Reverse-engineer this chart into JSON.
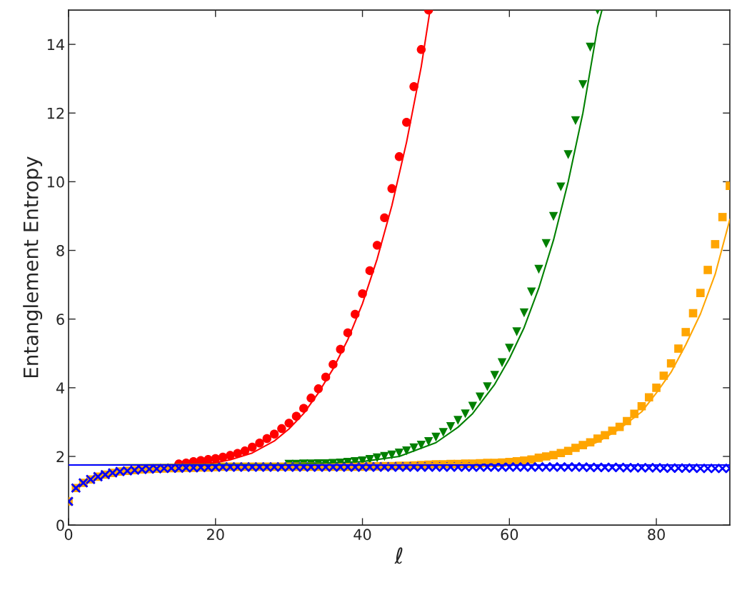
{
  "chart_data": {
    "type": "scatter",
    "xlabel": "ℓ",
    "ylabel": "Entanglement Entropy",
    "xlim": [
      0,
      90
    ],
    "ylim": [
      0,
      15
    ],
    "xticks": [
      0,
      20,
      40,
      60,
      80
    ],
    "yticks": [
      0,
      2,
      4,
      6,
      8,
      10,
      12,
      14
    ],
    "grid": false,
    "legend": false,
    "x": [
      0,
      1,
      2,
      3,
      4,
      5,
      6,
      7,
      8,
      9,
      10,
      11,
      12,
      13,
      14,
      15,
      16,
      17,
      18,
      19,
      20,
      21,
      22,
      23,
      24,
      25,
      26,
      27,
      28,
      29,
      30,
      31,
      32,
      33,
      34,
      35,
      36,
      37,
      38,
      39,
      40,
      41,
      42,
      43,
      44,
      45,
      46,
      47,
      48,
      49,
      50,
      51,
      52,
      53,
      54,
      55,
      56,
      57,
      58,
      59,
      60,
      61,
      62,
      63,
      64,
      65,
      66,
      67,
      68,
      69,
      70,
      71,
      72,
      73,
      74,
      75,
      76,
      77,
      78,
      79,
      80,
      81,
      82,
      83,
      84,
      85,
      86,
      87,
      88,
      89,
      90
    ],
    "series": [
      {
        "marker": "circle",
        "color": "#ff0000",
        "x": [
          15,
          16,
          17,
          18,
          19,
          20,
          21,
          22,
          23,
          24,
          25,
          26,
          27,
          28,
          29,
          30,
          31,
          32,
          33,
          34,
          35,
          36,
          37,
          38,
          39,
          40,
          41,
          42,
          43,
          44,
          45,
          46,
          47,
          48,
          49
        ],
        "values": [
          1.78,
          1.81,
          1.85,
          1.88,
          1.91,
          1.94,
          1.98,
          2.03,
          2.09,
          2.16,
          2.27,
          2.39,
          2.52,
          2.65,
          2.81,
          2.97,
          3.17,
          3.4,
          3.7,
          3.97,
          4.31,
          4.68,
          5.12,
          5.6,
          6.14,
          6.74,
          7.41,
          8.15,
          8.95,
          9.8,
          10.73,
          11.73,
          12.77,
          13.85,
          15.0
        ]
      },
      {
        "marker": "triangle",
        "color": "#008000",
        "x": [
          30,
          31,
          32,
          33,
          34,
          35,
          36,
          37,
          38,
          39,
          40,
          41,
          42,
          43,
          44,
          45,
          46,
          47,
          48,
          49,
          50,
          51,
          52,
          53,
          54,
          55,
          56,
          57,
          58,
          59,
          60,
          61,
          62,
          63,
          64,
          65,
          66,
          67,
          68,
          69,
          70,
          71,
          72
        ],
        "values": [
          1.77,
          1.77,
          1.78,
          1.78,
          1.79,
          1.79,
          1.8,
          1.81,
          1.83,
          1.85,
          1.87,
          1.91,
          1.96,
          2.0,
          2.04,
          2.1,
          2.16,
          2.25,
          2.33,
          2.43,
          2.56,
          2.7,
          2.87,
          3.05,
          3.24,
          3.46,
          3.73,
          4.03,
          4.36,
          4.73,
          5.15,
          5.63,
          6.18,
          6.79,
          7.45,
          8.2,
          8.99,
          9.85,
          10.79,
          11.78,
          12.83,
          13.92,
          15.0
        ]
      },
      {
        "marker": "square",
        "color": "#ffa500",
        "values": [
          0.69,
          1.08,
          1.23,
          1.33,
          1.41,
          1.47,
          1.52,
          1.56,
          1.58,
          1.6,
          1.62,
          1.63,
          1.64,
          1.65,
          1.66,
          1.66,
          1.67,
          1.67,
          1.68,
          1.68,
          1.69,
          1.7,
          1.7,
          1.7,
          1.7,
          1.7,
          1.7,
          1.7,
          1.7,
          1.7,
          1.7,
          1.7,
          1.7,
          1.7,
          1.7,
          1.7,
          1.7,
          1.7,
          1.7,
          1.7,
          1.7,
          1.71,
          1.71,
          1.72,
          1.72,
          1.73,
          1.73,
          1.74,
          1.75,
          1.76,
          1.77,
          1.77,
          1.78,
          1.78,
          1.79,
          1.79,
          1.8,
          1.81,
          1.81,
          1.82,
          1.84,
          1.86,
          1.88,
          1.91,
          1.96,
          2.0,
          2.04,
          2.1,
          2.16,
          2.25,
          2.33,
          2.41,
          2.52,
          2.62,
          2.75,
          2.86,
          3.03,
          3.24,
          3.46,
          3.72,
          4.0,
          4.35,
          4.71,
          5.14,
          5.62,
          6.17,
          6.76,
          7.43,
          8.18,
          8.97,
          9.88
        ]
      },
      {
        "marker": "cross",
        "color": "#0000ff",
        "values": [
          0.69,
          1.08,
          1.23,
          1.33,
          1.41,
          1.47,
          1.52,
          1.56,
          1.58,
          1.6,
          1.62,
          1.63,
          1.64,
          1.65,
          1.66,
          1.66,
          1.67,
          1.67,
          1.68,
          1.68,
          1.69,
          1.69,
          1.69,
          1.69,
          1.69,
          1.69,
          1.69,
          1.69,
          1.69,
          1.69,
          1.69,
          1.69,
          1.69,
          1.69,
          1.69,
          1.69,
          1.69,
          1.69,
          1.69,
          1.69,
          1.69,
          1.69,
          1.69,
          1.69,
          1.69,
          1.69,
          1.69,
          1.69,
          1.69,
          1.69,
          1.69,
          1.69,
          1.69,
          1.69,
          1.69,
          1.69,
          1.69,
          1.69,
          1.69,
          1.69,
          1.69,
          1.69,
          1.69,
          1.69,
          1.69,
          1.69,
          1.69,
          1.69,
          1.69,
          1.69,
          1.69,
          1.68,
          1.68,
          1.68,
          1.68,
          1.68,
          1.67,
          1.67,
          1.67,
          1.67,
          1.67,
          1.66,
          1.66,
          1.66,
          1.66,
          1.66,
          1.65,
          1.65,
          1.65,
          1.65,
          1.65
        ]
      },
      {
        "type": "line",
        "color": "#ff0000",
        "x": [
          0,
          10,
          15,
          20,
          22,
          25,
          28,
          30,
          32,
          34,
          36,
          38,
          40,
          42,
          44,
          46,
          48,
          49.2
        ],
        "values": [
          1.75,
          1.75,
          1.76,
          1.82,
          1.9,
          2.1,
          2.45,
          2.8,
          3.25,
          3.85,
          4.55,
          5.4,
          6.45,
          7.75,
          9.3,
          11.15,
          13.35,
          15.0
        ]
      },
      {
        "type": "line",
        "color": "#008000",
        "x": [
          0,
          30,
          40,
          45,
          50,
          53,
          55,
          58,
          60,
          62,
          64,
          66,
          68,
          70,
          72,
          72.6
        ],
        "values": [
          1.75,
          1.77,
          1.85,
          2.0,
          2.4,
          2.85,
          3.25,
          4.1,
          4.85,
          5.75,
          6.9,
          8.3,
          10.0,
          12.0,
          14.5,
          15.0
        ]
      },
      {
        "type": "line",
        "color": "#ffa500",
        "x": [
          0,
          40,
          55,
          60,
          65,
          70,
          72,
          75,
          78,
          80,
          82,
          84,
          86,
          88,
          90
        ],
        "values": [
          1.75,
          1.76,
          1.8,
          1.85,
          1.98,
          2.25,
          2.42,
          2.8,
          3.3,
          3.85,
          4.45,
          5.25,
          6.15,
          7.3,
          8.9
        ]
      },
      {
        "type": "line",
        "color": "#0000ff",
        "x": [
          0,
          90
        ],
        "values": [
          1.75,
          1.75
        ]
      }
    ]
  }
}
